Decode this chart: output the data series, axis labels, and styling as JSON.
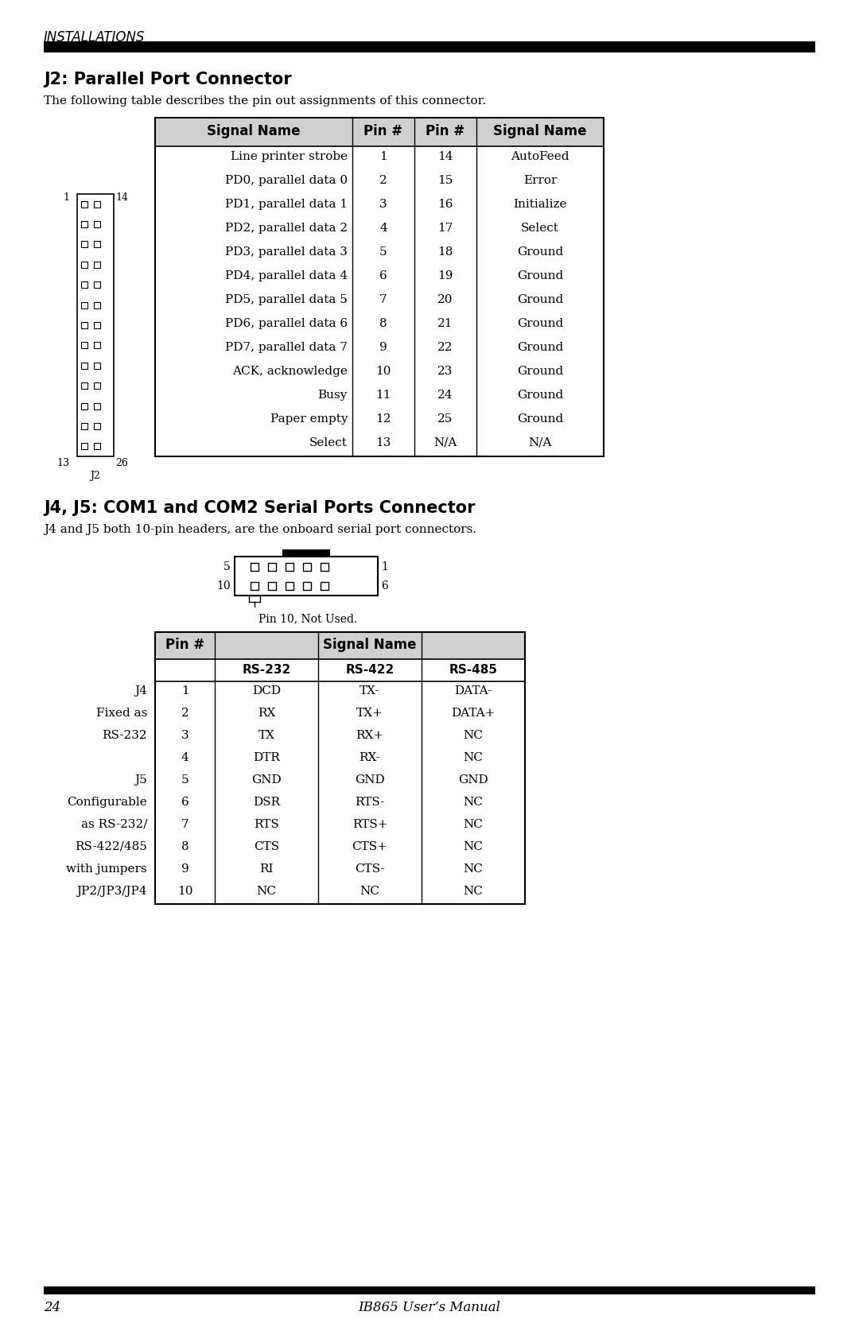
{
  "bg_color": "#ffffff",
  "page_title": "INSTALLATIONS",
  "j2_title": "J2: Parallel Port Connector",
  "j2_subtitle": "The following table describes the pin out assignments of this connector.",
  "j2_table_headers": [
    "Signal Name",
    "Pin #",
    "Pin #",
    "Signal Name"
  ],
  "j2_table_rows": [
    [
      "Line printer strobe",
      "1",
      "14",
      "AutoFeed"
    ],
    [
      "PD0, parallel data 0",
      "2",
      "15",
      "Error"
    ],
    [
      "PD1, parallel data 1",
      "3",
      "16",
      "Initialize"
    ],
    [
      "PD2, parallel data 2",
      "4",
      "17",
      "Select"
    ],
    [
      "PD3, parallel data 3",
      "5",
      "18",
      "Ground"
    ],
    [
      "PD4, parallel data 4",
      "6",
      "19",
      "Ground"
    ],
    [
      "PD5, parallel data 5",
      "7",
      "20",
      "Ground"
    ],
    [
      "PD6, parallel data 6",
      "8",
      "21",
      "Ground"
    ],
    [
      "PD7, parallel data 7",
      "9",
      "22",
      "Ground"
    ],
    [
      "ACK, acknowledge",
      "10",
      "23",
      "Ground"
    ],
    [
      "Busy",
      "11",
      "24",
      "Ground"
    ],
    [
      "Paper empty",
      "12",
      "25",
      "Ground"
    ],
    [
      "Select",
      "13",
      "N/A",
      "N/A"
    ]
  ],
  "j4j5_title": "J4, J5: COM1 and COM2 Serial Ports Connector",
  "j4j5_subtitle": "J4 and J5 both 10-pin headers, are the onboard serial port connectors.",
  "j4j5_pin_note": "Pin 10, Not Used.",
  "j4j5_table_rows": [
    [
      "1",
      "DCD",
      "TX-",
      "DATA-"
    ],
    [
      "2",
      "RX",
      "TX+",
      "DATA+"
    ],
    [
      "3",
      "TX",
      "RX+",
      "NC"
    ],
    [
      "4",
      "DTR",
      "RX-",
      "NC"
    ],
    [
      "5",
      "GND",
      "GND",
      "GND"
    ],
    [
      "6",
      "DSR",
      "RTS-",
      "NC"
    ],
    [
      "7",
      "RTS",
      "RTS+",
      "NC"
    ],
    [
      "8",
      "CTS",
      "CTS+",
      "NC"
    ],
    [
      "9",
      "RI",
      "CTS-",
      "NC"
    ],
    [
      "10",
      "NC",
      "NC",
      "NC"
    ]
  ],
  "j4_left_labels": [
    [
      0,
      "J4"
    ],
    [
      1,
      "Fixed as"
    ],
    [
      2,
      "RS-232"
    ],
    [
      4,
      "J5"
    ],
    [
      5,
      "Configurable"
    ],
    [
      6,
      "as RS-232/"
    ],
    [
      7,
      "RS-422/485"
    ],
    [
      8,
      "with jumpers"
    ],
    [
      9,
      "JP2/JP3/JP4"
    ]
  ],
  "footer_num": "24",
  "footer_title": "IB865 User’s Manual"
}
